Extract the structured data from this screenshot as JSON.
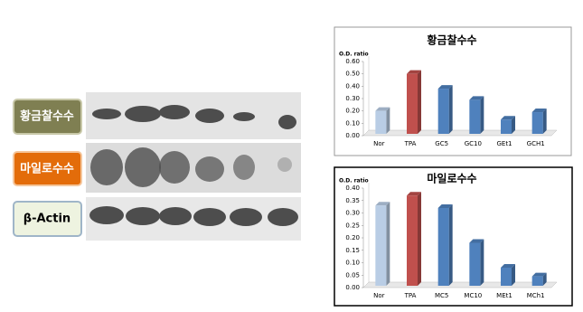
{
  "blot": {
    "labels": [
      "황금찰수수",
      "마일로수수",
      "β-Actin"
    ]
  },
  "chart_data": [
    {
      "type": "bar",
      "title": "황금찰수수",
      "y_label": "O.D. ratio",
      "categories": [
        "Nor",
        "TPA",
        "GC5",
        "GC10",
        "GEt1",
        "GCH1"
      ],
      "values": [
        0.2,
        0.5,
        0.38,
        0.29,
        0.13,
        0.19
      ],
      "colors": [
        "#b9cde5",
        "#c0504d",
        "#4f81bd",
        "#4f81bd",
        "#4f81bd",
        "#4f81bd"
      ],
      "ylim": [
        0,
        0.6
      ],
      "yticks": [
        {
          "value": 0,
          "label": "0.00"
        },
        {
          "value": 0.1,
          "label": "0.10"
        },
        {
          "value": 0.2,
          "label": "0.20"
        },
        {
          "value": 0.3,
          "label": "0.30"
        },
        {
          "value": 0.4,
          "label": "0.40"
        },
        {
          "value": 0.5,
          "label": "0.50"
        },
        {
          "value": 0.6,
          "label": "0.60"
        }
      ]
    },
    {
      "type": "bar",
      "title": "마일로수수",
      "y_label": "O.D. ratio",
      "categories": [
        "Nor",
        "TPA",
        "MC5",
        "MC10",
        "MEt1",
        "MCh1"
      ],
      "values": [
        0.33,
        0.37,
        0.32,
        0.18,
        0.08,
        0.045
      ],
      "colors": [
        "#b9cde5",
        "#c0504d",
        "#4f81bd",
        "#4f81bd",
        "#4f81bd",
        "#4f81bd"
      ],
      "ylim": [
        0,
        0.4
      ],
      "yticks": [
        {
          "value": 0,
          "label": "0.00"
        },
        {
          "value": 0.05,
          "label": "0.05"
        },
        {
          "value": 0.1,
          "label": "0.10"
        },
        {
          "value": 0.15,
          "label": "0.15"
        },
        {
          "value": 0.2,
          "label": "0.20"
        },
        {
          "value": 0.25,
          "label": "0.25"
        },
        {
          "value": 0.3,
          "label": "0.30"
        },
        {
          "value": 0.35,
          "label": "0.35"
        },
        {
          "value": 0.4,
          "label": "0.40"
        }
      ]
    }
  ]
}
